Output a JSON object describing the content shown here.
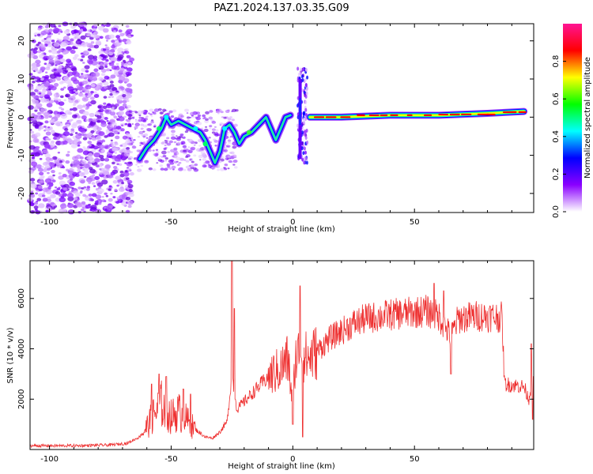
{
  "title": "PAZ1.2024.137.03.35.G09",
  "chart_data": [
    {
      "type": "heatmap",
      "xlabel": "Height of straight line (km)",
      "ylabel": "Frequency (Hz)",
      "xlim": [
        -108,
        99
      ],
      "ylim": [
        -25,
        24.5
      ],
      "x_ticks": [
        -100,
        -50,
        0,
        50
      ],
      "y_ticks": [
        -20,
        -10,
        0,
        10,
        20
      ],
      "colorbar": {
        "label": "Normalized spectral amplitude",
        "range": [
          0,
          1
        ],
        "ticks": [
          0.0,
          0.2,
          0.4,
          0.6,
          0.8
        ],
        "colors": [
          "#ffffff",
          "#8a00ff",
          "#0000ff",
          "#00ffff",
          "#00ff00",
          "#ffff00",
          "#ff0000",
          "#ff1493"
        ]
      },
      "ridge": [
        {
          "x": -63,
          "y": -11
        },
        {
          "x": -60,
          "y": -8
        },
        {
          "x": -57,
          "y": -6
        },
        {
          "x": -54,
          "y": -3
        },
        {
          "x": -52,
          "y": 0
        },
        {
          "x": -50,
          "y": -2
        },
        {
          "x": -47,
          "y": -1
        },
        {
          "x": -44,
          "y": -2
        },
        {
          "x": -41,
          "y": -3
        },
        {
          "x": -38,
          "y": -4
        },
        {
          "x": -36,
          "y": -6
        },
        {
          "x": -34,
          "y": -9
        },
        {
          "x": -32,
          "y": -12
        },
        {
          "x": -30,
          "y": -9
        },
        {
          "x": -28,
          "y": -3
        },
        {
          "x": -26,
          "y": -2
        },
        {
          "x": -24,
          "y": -4
        },
        {
          "x": -22,
          "y": -7
        },
        {
          "x": -20,
          "y": -5
        },
        {
          "x": -17,
          "y": -4
        },
        {
          "x": -14,
          "y": -2
        },
        {
          "x": -11,
          "y": 0
        },
        {
          "x": -9,
          "y": -3
        },
        {
          "x": -7,
          "y": -6
        },
        {
          "x": -5,
          "y": -3
        },
        {
          "x": -3,
          "y": 0
        },
        {
          "x": -1,
          "y": 0.5
        },
        {
          "x": 7,
          "y": 0
        },
        {
          "x": 20,
          "y": 0
        },
        {
          "x": 40,
          "y": 0.5
        },
        {
          "x": 60,
          "y": 0.5
        },
        {
          "x": 80,
          "y": 1
        },
        {
          "x": 95,
          "y": 1.5
        }
      ]
    },
    {
      "type": "line",
      "xlabel": "Height of straight line (km)",
      "ylabel": "SNR (10 * v/v)",
      "xlim": [
        -108,
        99
      ],
      "ylim": [
        0,
        7500
      ],
      "x_ticks": [
        -100,
        -50,
        0,
        50
      ],
      "y_ticks": [
        2000,
        4000,
        6000
      ],
      "series": [
        {
          "color": "#ee3030",
          "envelope": [
            {
              "x": -108,
              "y": 150
            },
            {
              "x": -90,
              "y": 150
            },
            {
              "x": -75,
              "y": 180
            },
            {
              "x": -68,
              "y": 250
            },
            {
              "x": -63,
              "y": 500
            },
            {
              "x": -60,
              "y": 900
            },
            {
              "x": -57,
              "y": 1400
            },
            {
              "x": -54,
              "y": 1800
            },
            {
              "x": -52,
              "y": 1500
            },
            {
              "x": -50,
              "y": 1300
            },
            {
              "x": -47,
              "y": 1500
            },
            {
              "x": -44,
              "y": 1200
            },
            {
              "x": -40,
              "y": 800
            },
            {
              "x": -36,
              "y": 500
            },
            {
              "x": -33,
              "y": 450
            },
            {
              "x": -30,
              "y": 700
            },
            {
              "x": -27,
              "y": 1100
            },
            {
              "x": -25,
              "y": 3000
            },
            {
              "x": -23,
              "y": 1600
            },
            {
              "x": -20,
              "y": 1900
            },
            {
              "x": -15,
              "y": 2400
            },
            {
              "x": -10,
              "y": 2900
            },
            {
              "x": -5,
              "y": 3200
            },
            {
              "x": -2,
              "y": 3600
            },
            {
              "x": 0,
              "y": 1800
            },
            {
              "x": 1,
              "y": 3600
            },
            {
              "x": 3,
              "y": 3900
            },
            {
              "x": 6,
              "y": 3600
            },
            {
              "x": 10,
              "y": 3900
            },
            {
              "x": 15,
              "y": 4400
            },
            {
              "x": 20,
              "y": 4700
            },
            {
              "x": 25,
              "y": 5000
            },
            {
              "x": 30,
              "y": 5200
            },
            {
              "x": 40,
              "y": 5350
            },
            {
              "x": 50,
              "y": 5450
            },
            {
              "x": 55,
              "y": 5500
            },
            {
              "x": 60,
              "y": 5300
            },
            {
              "x": 63,
              "y": 4800
            },
            {
              "x": 65,
              "y": 4500
            },
            {
              "x": 68,
              "y": 5200
            },
            {
              "x": 75,
              "y": 5300
            },
            {
              "x": 80,
              "y": 5300
            },
            {
              "x": 86,
              "y": 5250
            },
            {
              "x": 87,
              "y": 2600
            },
            {
              "x": 95,
              "y": 2500
            },
            {
              "x": 97,
              "y": 2000
            },
            {
              "x": 99,
              "y": 3000
            }
          ],
          "spikes": [
            {
              "x": -58,
              "y": 2600
            },
            {
              "x": -55,
              "y": 3000
            },
            {
              "x": -52,
              "y": 2900
            },
            {
              "x": -45,
              "y": 2400
            },
            {
              "x": -42,
              "y": 2200
            },
            {
              "x": -25,
              "y": 7500
            },
            {
              "x": -24,
              "y": 5600
            },
            {
              "x": 3,
              "y": 6500
            },
            {
              "x": 4,
              "y": 500
            },
            {
              "x": 0,
              "y": 1000
            },
            {
              "x": 58,
              "y": 6600
            },
            {
              "x": 62,
              "y": 6300
            },
            {
              "x": 65,
              "y": 3000
            },
            {
              "x": 98,
              "y": 4200
            },
            {
              "x": 98.5,
              "y": 1200
            }
          ]
        }
      ]
    }
  ]
}
